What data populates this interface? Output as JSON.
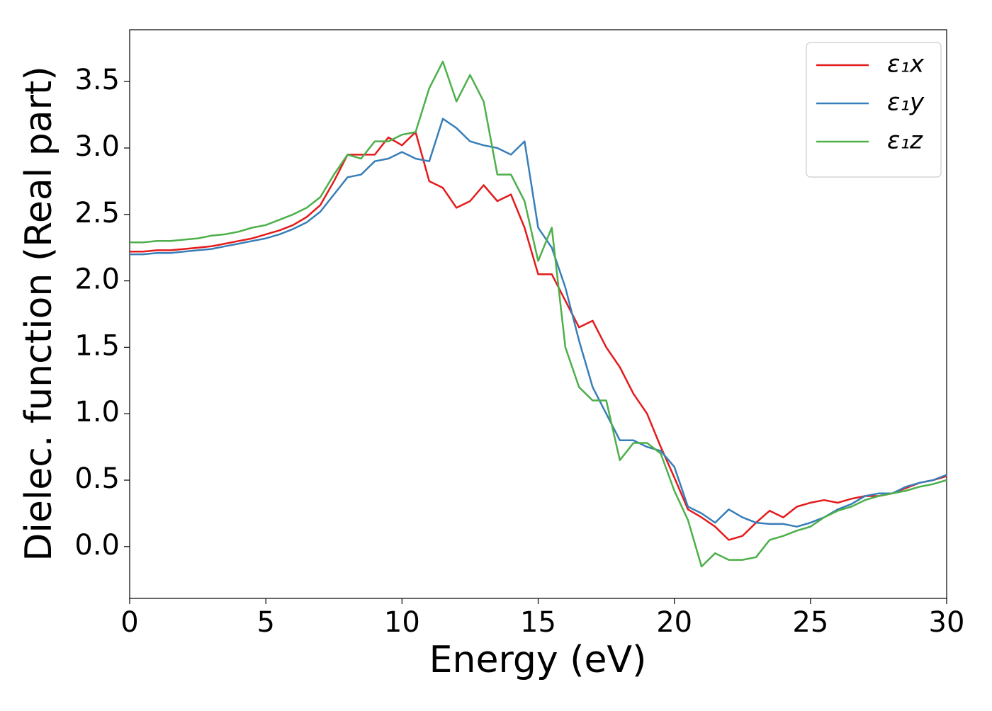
{
  "chart_data": {
    "type": "line",
    "xlabel": "Energy (eV)",
    "ylabel": "Dielec. function (Real part)",
    "x": [
      0,
      0.5,
      1,
      1.5,
      2,
      2.5,
      3,
      3.5,
      4,
      4.5,
      5,
      5.5,
      6,
      6.5,
      7,
      7.5,
      8,
      8.5,
      9,
      9.5,
      10,
      10.5,
      11,
      11.5,
      12,
      12.5,
      13,
      13.5,
      14,
      14.5,
      15,
      15.5,
      16,
      16.5,
      17,
      17.5,
      18,
      18.5,
      19,
      19.5,
      20,
      20.5,
      21,
      21.5,
      22,
      22.5,
      23,
      23.5,
      24,
      24.5,
      25,
      25.5,
      26,
      26.5,
      27,
      27.5,
      28,
      28.5,
      29,
      29.5,
      30
    ],
    "series": [
      {
        "name": "ε₁x",
        "color": "#e41a1c",
        "values": [
          2.22,
          2.22,
          2.23,
          2.23,
          2.24,
          2.25,
          2.26,
          2.28,
          2.3,
          2.32,
          2.35,
          2.38,
          2.42,
          2.48,
          2.57,
          2.75,
          2.95,
          2.95,
          2.95,
          3.08,
          3.02,
          3.12,
          2.75,
          2.7,
          2.55,
          2.6,
          2.72,
          2.6,
          2.65,
          2.4,
          2.05,
          2.05,
          1.85,
          1.65,
          1.7,
          1.5,
          1.35,
          1.15,
          1.0,
          0.75,
          0.52,
          0.28,
          0.22,
          0.15,
          0.05,
          0.08,
          0.18,
          0.27,
          0.22,
          0.3,
          0.33,
          0.35,
          0.33,
          0.36,
          0.38,
          0.38,
          0.4,
          0.44,
          0.48,
          0.5,
          0.53
        ]
      },
      {
        "name": "ε₁y",
        "color": "#377eb8",
        "values": [
          2.2,
          2.2,
          2.21,
          2.21,
          2.22,
          2.23,
          2.24,
          2.26,
          2.28,
          2.3,
          2.32,
          2.35,
          2.39,
          2.44,
          2.52,
          2.65,
          2.78,
          2.8,
          2.9,
          2.92,
          2.97,
          2.92,
          2.9,
          3.22,
          3.15,
          3.05,
          3.02,
          3.0,
          2.95,
          3.05,
          2.4,
          2.25,
          1.95,
          1.55,
          1.2,
          1.0,
          0.8,
          0.8,
          0.75,
          0.72,
          0.6,
          0.3,
          0.25,
          0.18,
          0.28,
          0.22,
          0.18,
          0.17,
          0.17,
          0.15,
          0.18,
          0.22,
          0.28,
          0.32,
          0.38,
          0.4,
          0.4,
          0.45,
          0.48,
          0.5,
          0.54
        ]
      },
      {
        "name": "ε₁z",
        "color": "#4daf4a",
        "values": [
          2.29,
          2.29,
          2.3,
          2.3,
          2.31,
          2.32,
          2.34,
          2.35,
          2.37,
          2.4,
          2.42,
          2.46,
          2.5,
          2.55,
          2.63,
          2.8,
          2.95,
          2.92,
          3.05,
          3.05,
          3.1,
          3.12,
          3.45,
          3.65,
          3.35,
          3.55,
          3.35,
          2.8,
          2.8,
          2.6,
          2.15,
          2.4,
          1.5,
          1.2,
          1.1,
          1.1,
          0.65,
          0.78,
          0.78,
          0.7,
          0.42,
          0.2,
          -0.15,
          -0.05,
          -0.1,
          -0.1,
          -0.08,
          0.05,
          0.08,
          0.12,
          0.15,
          0.22,
          0.27,
          0.3,
          0.35,
          0.38,
          0.4,
          0.42,
          0.45,
          0.47,
          0.5
        ]
      }
    ],
    "xlim": [
      0,
      30
    ],
    "xticks": [
      0,
      5,
      10,
      15,
      20,
      25,
      30
    ],
    "ylim": [
      -0.39,
      3.89
    ],
    "yticks": [
      {
        "value": 0,
        "label": "0.0"
      },
      0.5,
      {
        "value": 1,
        "label": "1.0"
      },
      1.5,
      {
        "value": 2,
        "label": "2.0"
      },
      2.5,
      {
        "value": 3,
        "label": "3.0"
      },
      3.5
    ],
    "grid": false,
    "legend": "upper right"
  }
}
